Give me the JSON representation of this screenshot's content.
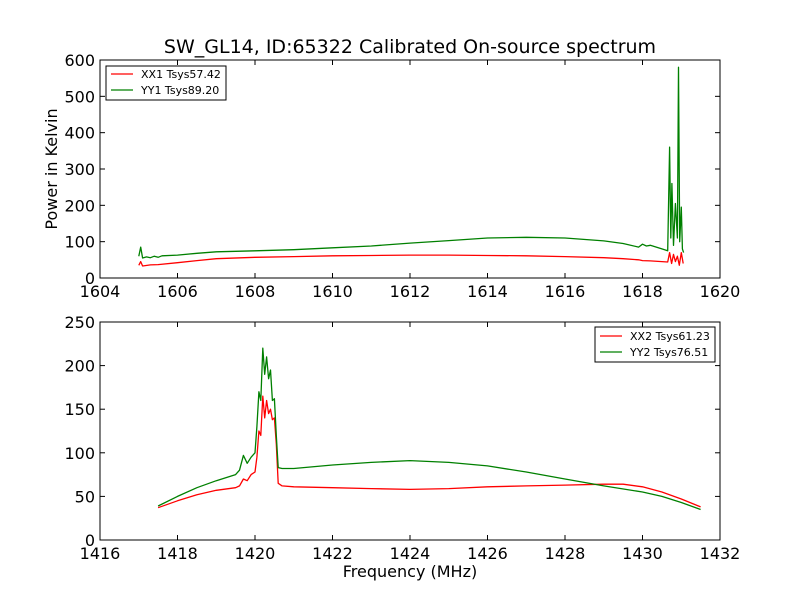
{
  "title": "SW_GL14, ID:65322 Calibrated On-source spectrum",
  "colors": {
    "xx": "#ff0000",
    "yy": "#008000"
  },
  "chart_data": [
    {
      "type": "line",
      "ylabel": "Power in Kelvin",
      "xlabel": "",
      "xlim": [
        1604,
        1620
      ],
      "ylim": [
        0,
        600
      ],
      "xticks": [
        1604,
        1606,
        1608,
        1610,
        1612,
        1614,
        1616,
        1618,
        1620
      ],
      "yticks": [
        0,
        100,
        200,
        300,
        400,
        500,
        600
      ],
      "grid": false,
      "legend_position": "top-left",
      "series": [
        {
          "name": "XX1 Tsys57.42",
          "color": "#ff0000",
          "x": [
            1605.0,
            1605.05,
            1605.1,
            1605.3,
            1605.5,
            1606.0,
            1606.5,
            1607.0,
            1608.0,
            1609.0,
            1610.0,
            1611.0,
            1612.0,
            1613.0,
            1614.0,
            1615.0,
            1616.0,
            1617.0,
            1617.5,
            1617.9,
            1618.0,
            1618.2,
            1618.5,
            1618.65,
            1618.7,
            1618.75,
            1618.8,
            1618.85,
            1618.9,
            1618.95,
            1619.0,
            1619.05
          ],
          "y": [
            35,
            45,
            33,
            36,
            37,
            42,
            48,
            53,
            57,
            59,
            61,
            62,
            63,
            63,
            62,
            61,
            59,
            56,
            53,
            50,
            48,
            47,
            45,
            44,
            70,
            40,
            65,
            45,
            60,
            35,
            70,
            40
          ]
        },
        {
          "name": "YY1 Tsys89.20",
          "color": "#008000",
          "x": [
            1605.0,
            1605.05,
            1605.1,
            1605.2,
            1605.3,
            1605.4,
            1605.5,
            1605.6,
            1606.0,
            1606.5,
            1607.0,
            1608.0,
            1609.0,
            1610.0,
            1611.0,
            1612.0,
            1613.0,
            1614.0,
            1615.0,
            1616.0,
            1617.0,
            1617.5,
            1617.9,
            1618.0,
            1618.1,
            1618.2,
            1618.5,
            1618.65,
            1618.7,
            1618.73,
            1618.76,
            1618.8,
            1618.85,
            1618.9,
            1618.93,
            1618.96,
            1619.0,
            1619.03,
            1619.06
          ],
          "y": [
            60,
            85,
            55,
            58,
            56,
            60,
            57,
            61,
            63,
            68,
            72,
            75,
            78,
            83,
            88,
            96,
            103,
            110,
            112,
            110,
            102,
            95,
            85,
            93,
            88,
            90,
            80,
            75,
            360,
            110,
            260,
            90,
            205,
            110,
            580,
            100,
            195,
            80,
            70
          ]
        }
      ]
    },
    {
      "type": "line",
      "ylabel": "",
      "xlabel": "Frequency (MHz)",
      "xlim": [
        1416,
        1432
      ],
      "ylim": [
        0,
        250
      ],
      "xticks": [
        1416,
        1418,
        1420,
        1422,
        1424,
        1426,
        1428,
        1430,
        1432
      ],
      "yticks": [
        0,
        50,
        100,
        150,
        200,
        250
      ],
      "grid": false,
      "legend_position": "top-right",
      "series": [
        {
          "name": "XX2 Tsys61.23",
          "color": "#ff0000",
          "x": [
            1417.5,
            1418.0,
            1418.5,
            1419.0,
            1419.5,
            1419.6,
            1419.7,
            1419.8,
            1419.9,
            1420.0,
            1420.05,
            1420.1,
            1420.15,
            1420.2,
            1420.25,
            1420.3,
            1420.35,
            1420.4,
            1420.45,
            1420.5,
            1420.55,
            1420.6,
            1420.7,
            1421.0,
            1422.0,
            1423.0,
            1424.0,
            1425.0,
            1426.0,
            1427.0,
            1428.0,
            1429.0,
            1429.5,
            1430.0,
            1430.5,
            1431.0,
            1431.5
          ],
          "y": [
            37,
            45,
            52,
            57,
            60,
            62,
            70,
            68,
            75,
            78,
            95,
            125,
            120,
            165,
            140,
            160,
            145,
            150,
            138,
            140,
            110,
            65,
            62,
            61,
            60,
            59,
            58,
            59,
            61,
            62,
            63,
            64,
            64,
            61,
            55,
            47,
            38
          ]
        },
        {
          "name": "YY2 Tsys76.51",
          "color": "#008000",
          "x": [
            1417.5,
            1418.0,
            1418.5,
            1419.0,
            1419.5,
            1419.6,
            1419.7,
            1419.8,
            1419.9,
            1420.0,
            1420.05,
            1420.1,
            1420.15,
            1420.2,
            1420.25,
            1420.3,
            1420.35,
            1420.4,
            1420.45,
            1420.5,
            1420.55,
            1420.6,
            1420.7,
            1421.0,
            1422.0,
            1423.0,
            1424.0,
            1425.0,
            1426.0,
            1427.0,
            1428.0,
            1429.0,
            1430.0,
            1430.5,
            1431.0,
            1431.5
          ],
          "y": [
            39,
            50,
            60,
            68,
            75,
            80,
            97,
            88,
            95,
            100,
            130,
            170,
            160,
            220,
            190,
            210,
            185,
            195,
            160,
            162,
            120,
            83,
            82,
            82,
            86,
            89,
            91,
            89,
            85,
            78,
            70,
            62,
            55,
            50,
            43,
            35
          ]
        }
      ]
    }
  ]
}
